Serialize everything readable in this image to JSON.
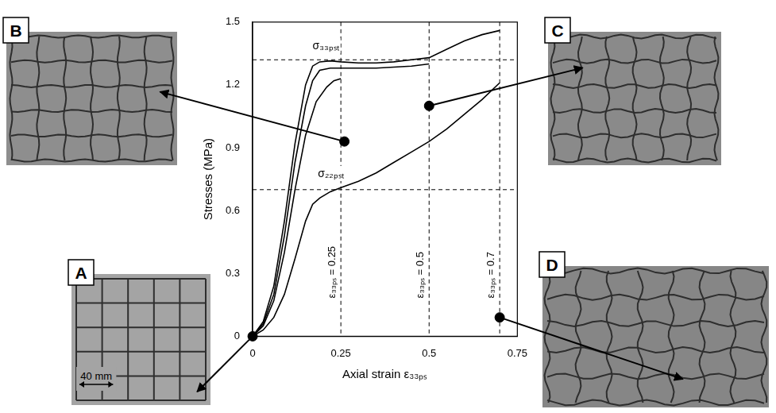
{
  "chart_data": {
    "type": "line",
    "xlabel": "Axial strain ε₃₃ₚₛ",
    "ylabel": "Stresses (MPa)",
    "xlim": [
      0,
      0.75
    ],
    "xticks": [
      0,
      0.25,
      0.5,
      0.75
    ],
    "ylim": [
      0,
      1.5
    ],
    "yticks": [
      0,
      0.3,
      0.6,
      0.9,
      1.2,
      1.5
    ],
    "grid": false,
    "series": [
      {
        "color": "#000000",
        "line_style": "solid",
        "x": [
          0,
          0.03,
          0.06,
          0.09,
          0.12,
          0.15,
          0.17,
          0.19,
          0.22,
          0.25,
          0.3,
          0.35,
          0.4,
          0.45,
          0.5,
          0.55,
          0.6,
          0.65,
          0.7
        ],
        "values": [
          0,
          0.07,
          0.24,
          0.55,
          0.92,
          1.2,
          1.29,
          1.31,
          1.315,
          1.31,
          1.305,
          1.305,
          1.31,
          1.32,
          1.33,
          1.37,
          1.41,
          1.44,
          1.46
        ]
      },
      {
        "color": "#000000",
        "line_style": "solid",
        "x": [
          0,
          0.03,
          0.06,
          0.09,
          0.12,
          0.15,
          0.17,
          0.19,
          0.22,
          0.25,
          0.3,
          0.35,
          0.4,
          0.45,
          0.5
        ],
        "values": [
          0,
          0.06,
          0.2,
          0.48,
          0.83,
          1.1,
          1.22,
          1.27,
          1.28,
          1.28,
          1.28,
          1.28,
          1.285,
          1.29,
          1.3
        ]
      },
      {
        "color": "#000000",
        "line_style": "solid",
        "x": [
          0,
          0.03,
          0.06,
          0.09,
          0.12,
          0.15,
          0.18,
          0.21,
          0.23,
          0.25
        ],
        "values": [
          0,
          0.05,
          0.17,
          0.4,
          0.7,
          0.96,
          1.12,
          1.19,
          1.22,
          1.23
        ]
      },
      {
        "color": "#000000",
        "line_style": "solid",
        "x": [
          0,
          0.03,
          0.06,
          0.09,
          0.12,
          0.15,
          0.17,
          0.19,
          0.22,
          0.25,
          0.3,
          0.35,
          0.4,
          0.45,
          0.5,
          0.55,
          0.6,
          0.65,
          0.7
        ],
        "values": [
          0,
          0.03,
          0.09,
          0.2,
          0.37,
          0.55,
          0.63,
          0.66,
          0.69,
          0.71,
          0.74,
          0.78,
          0.83,
          0.88,
          0.93,
          0.99,
          1.06,
          1.13,
          1.21
        ]
      }
    ],
    "annotations": [
      {
        "text": "σ₃₃ₚₛₜ",
        "x": 0.17,
        "y": 1.37
      },
      {
        "text": "σ₂₂ₚₛₜ",
        "x": 0.185,
        "y": 0.76
      }
    ],
    "reference_lines": [
      {
        "axis": "y",
        "value": 1.32
      },
      {
        "axis": "y",
        "value": 0.7
      },
      {
        "axis": "x",
        "value": 0.25,
        "label": "ε₃₃ₚₛ = 0.25"
      },
      {
        "axis": "x",
        "value": 0.5,
        "label": "ε₃₃ₚₛ = 0.5"
      },
      {
        "axis": "x",
        "value": 0.7,
        "label": "ε₃₃ₚₛ = 0.7"
      }
    ],
    "marked_points": [
      {
        "panel": "A",
        "x": 0,
        "y": 0
      },
      {
        "panel": "B",
        "x": 0.26,
        "y": 0.93
      },
      {
        "panel": "C",
        "x": 0.5,
        "y": 1.1
      },
      {
        "panel": "D",
        "x": 0.7,
        "y": 0.09
      }
    ]
  },
  "panels": [
    {
      "label": "A",
      "scale_bar": "40 mm"
    },
    {
      "label": "B"
    },
    {
      "label": "C"
    },
    {
      "label": "D"
    }
  ]
}
